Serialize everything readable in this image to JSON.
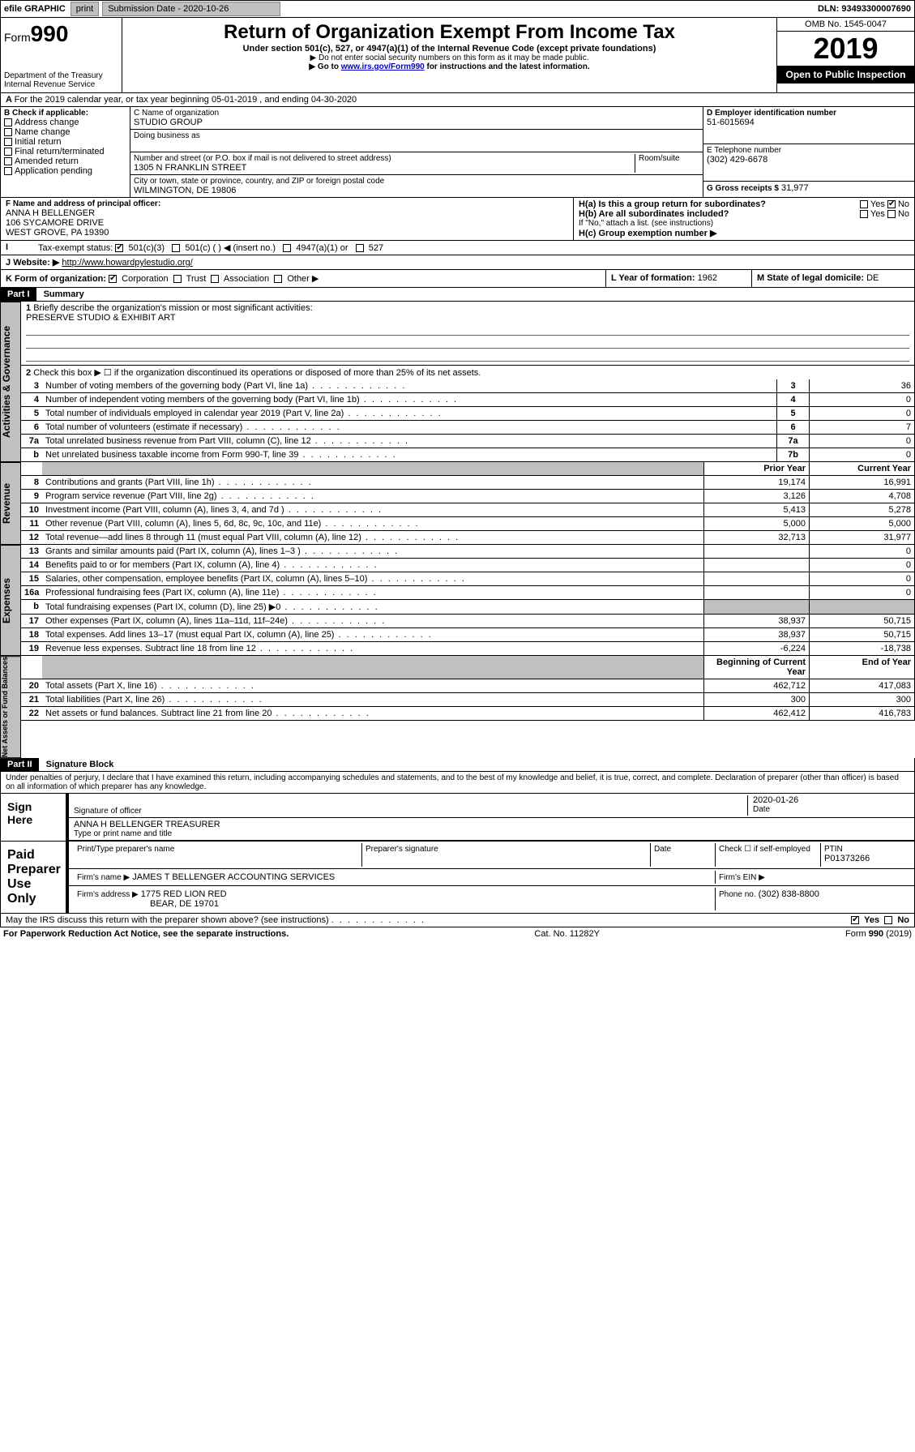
{
  "topbar": {
    "efile_label": "efile GRAPHIC",
    "print_btn": "print",
    "submission_label": "Submission Date - 2020-10-26",
    "dln_label": "DLN: 93493300007690"
  },
  "header": {
    "form_prefix": "Form",
    "form_number": "990",
    "dept": "Department of the Treasury",
    "irs": "Internal Revenue Service",
    "title": "Return of Organization Exempt From Income Tax",
    "subtitle": "Under section 501(c), 527, or 4947(a)(1) of the Internal Revenue Code (except private foundations)",
    "note1": "▶ Do not enter social security numbers on this form as it may be made public.",
    "note2_pre": "▶ Go to ",
    "note2_link": "www.irs.gov/Form990",
    "note2_post": " for instructions and the latest information.",
    "omb": "OMB No. 1545-0047",
    "year": "2019",
    "open": "Open to Public Inspection"
  },
  "period": {
    "line": "For the 2019 calendar year, or tax year beginning 05-01-2019    , and ending 04-30-2020"
  },
  "boxB": {
    "label": "B Check if applicable:",
    "items": [
      "Address change",
      "Name change",
      "Initial return",
      "Final return/terminated",
      "Amended return",
      "Application pending"
    ]
  },
  "boxC": {
    "name_label": "C Name of organization",
    "name": "STUDIO GROUP",
    "dba_label": "Doing business as",
    "addr_label": "Number and street (or P.O. box if mail is not delivered to street address)",
    "room_label": "Room/suite",
    "addr": "1305 N FRANKLIN STREET",
    "city_label": "City or town, state or province, country, and ZIP or foreign postal code",
    "city": "WILMINGTON, DE  19806"
  },
  "boxD": {
    "label": "D Employer identification number",
    "value": "51-6015694"
  },
  "boxE": {
    "label": "E Telephone number",
    "value": "(302) 429-6678"
  },
  "boxG": {
    "label": "G Gross receipts $",
    "value": "31,977"
  },
  "boxF": {
    "label": "F  Name and address of principal officer:",
    "name": "ANNA H BELLENGER",
    "addr1": "106 SYCAMORE DRIVE",
    "addr2": "WEST GROVE, PA  19390"
  },
  "boxH": {
    "ha_label": "H(a)  Is this a group return for subordinates?",
    "hb_label": "H(b)  Are all subordinates included?",
    "hb_note": "If \"No,\" attach a list. (see instructions)",
    "hc_label": "H(c)  Group exemption number ▶",
    "yes": "Yes",
    "no": "No"
  },
  "boxI": {
    "label": "Tax-exempt status:",
    "opt1": "501(c)(3)",
    "opt2": "501(c) (  ) ◀ (insert no.)",
    "opt3": "4947(a)(1) or",
    "opt4": "527"
  },
  "boxJ": {
    "label": "Website: ▶",
    "value": "http://www.howardpylestudio.org/"
  },
  "boxK": {
    "label": "K Form of organization:",
    "opts": [
      "Corporation",
      "Trust",
      "Association",
      "Other ▶"
    ]
  },
  "boxL": {
    "label": "L Year of formation:",
    "value": "1962"
  },
  "boxM": {
    "label": "M State of legal domicile:",
    "value": "DE"
  },
  "part1": {
    "label": "Part I",
    "title": "Summary",
    "q1": "Briefly describe the organization's mission or most significant activities:",
    "mission": "PRESERVE STUDIO & EXHIBIT ART",
    "q2": "Check this box ▶ ☐  if the organization discontinued its operations or disposed of more than 25% of its net assets.",
    "lines_gov": [
      {
        "n": "3",
        "d": "Number of voting members of the governing body (Part VI, line 1a)",
        "box": "3",
        "v": "36"
      },
      {
        "n": "4",
        "d": "Number of independent voting members of the governing body (Part VI, line 1b)",
        "box": "4",
        "v": "0"
      },
      {
        "n": "5",
        "d": "Total number of individuals employed in calendar year 2019 (Part V, line 2a)",
        "box": "5",
        "v": "0"
      },
      {
        "n": "6",
        "d": "Total number of volunteers (estimate if necessary)",
        "box": "6",
        "v": "7"
      },
      {
        "n": "7a",
        "d": "Total unrelated business revenue from Part VIII, column (C), line 12",
        "box": "7a",
        "v": "0"
      },
      {
        "n": "b",
        "d": "Net unrelated business taxable income from Form 990-T, line 39",
        "box": "7b",
        "v": "0"
      }
    ],
    "col_prior": "Prior Year",
    "col_current": "Current Year",
    "col_boy": "Beginning of Current Year",
    "col_eoy": "End of Year",
    "rev": [
      {
        "n": "8",
        "d": "Contributions and grants (Part VIII, line 1h)",
        "p": "19,174",
        "c": "16,991"
      },
      {
        "n": "9",
        "d": "Program service revenue (Part VIII, line 2g)",
        "p": "3,126",
        "c": "4,708"
      },
      {
        "n": "10",
        "d": "Investment income (Part VIII, column (A), lines 3, 4, and 7d )",
        "p": "5,413",
        "c": "5,278"
      },
      {
        "n": "11",
        "d": "Other revenue (Part VIII, column (A), lines 5, 6d, 8c, 9c, 10c, and 11e)",
        "p": "5,000",
        "c": "5,000"
      },
      {
        "n": "12",
        "d": "Total revenue—add lines 8 through 11 (must equal Part VIII, column (A), line 12)",
        "p": "32,713",
        "c": "31,977"
      }
    ],
    "exp": [
      {
        "n": "13",
        "d": "Grants and similar amounts paid (Part IX, column (A), lines 1–3 )",
        "p": "",
        "c": "0"
      },
      {
        "n": "14",
        "d": "Benefits paid to or for members (Part IX, column (A), line 4)",
        "p": "",
        "c": "0"
      },
      {
        "n": "15",
        "d": "Salaries, other compensation, employee benefits (Part IX, column (A), lines 5–10)",
        "p": "",
        "c": "0"
      },
      {
        "n": "16a",
        "d": "Professional fundraising fees (Part IX, column (A), line 11e)",
        "p": "",
        "c": "0"
      },
      {
        "n": "b",
        "d": "Total fundraising expenses (Part IX, column (D), line 25) ▶0",
        "p": "shade",
        "c": "shade"
      },
      {
        "n": "17",
        "d": "Other expenses (Part IX, column (A), lines 11a–11d, 11f–24e)",
        "p": "38,937",
        "c": "50,715"
      },
      {
        "n": "18",
        "d": "Total expenses. Add lines 13–17 (must equal Part IX, column (A), line 25)",
        "p": "38,937",
        "c": "50,715"
      },
      {
        "n": "19",
        "d": "Revenue less expenses. Subtract line 18 from line 12",
        "p": "-6,224",
        "c": "-18,738"
      }
    ],
    "net": [
      {
        "n": "20",
        "d": "Total assets (Part X, line 16)",
        "p": "462,712",
        "c": "417,083"
      },
      {
        "n": "21",
        "d": "Total liabilities (Part X, line 26)",
        "p": "300",
        "c": "300"
      },
      {
        "n": "22",
        "d": "Net assets or fund balances. Subtract line 21 from line 20",
        "p": "462,412",
        "c": "416,783"
      }
    ],
    "side_gov": "Activities & Governance",
    "side_rev": "Revenue",
    "side_exp": "Expenses",
    "side_net": "Net Assets or Fund Balances"
  },
  "part2": {
    "label": "Part II",
    "title": "Signature Block",
    "perjury": "Under penalties of perjury, I declare that I have examined this return, including accompanying schedules and statements, and to the best of my knowledge and belief, it is true, correct, and complete. Declaration of preparer (other than officer) is based on all information of which preparer has any knowledge.",
    "sign_here": "Sign Here",
    "sig_officer": "Signature of officer",
    "sig_date": "2020-01-26",
    "date_label": "Date",
    "officer_name": "ANNA H BELLENGER TREASURER",
    "type_name": "Type or print name and title",
    "paid": "Paid Preparer Use Only",
    "prep_name_label": "Print/Type preparer's name",
    "prep_sig_label": "Preparer's signature",
    "check_self": "Check ☐ if self-employed",
    "ptin_label": "PTIN",
    "ptin": "P01373266",
    "firm_name_label": "Firm's name    ▶",
    "firm_name": "JAMES T BELLENGER ACCOUNTING SERVICES",
    "firm_ein_label": "Firm's EIN ▶",
    "firm_addr_label": "Firm's address ▶",
    "firm_addr1": "1775 RED LION RED",
    "firm_addr2": "BEAR, DE  19701",
    "phone_label": "Phone no.",
    "phone": "(302) 838-8800",
    "discuss": "May the IRS discuss this return with the preparer shown above? (see instructions)",
    "paperwork": "For Paperwork Reduction Act Notice, see the separate instructions.",
    "cat": "Cat. No. 11282Y",
    "form_foot": "Form 990 (2019)"
  }
}
